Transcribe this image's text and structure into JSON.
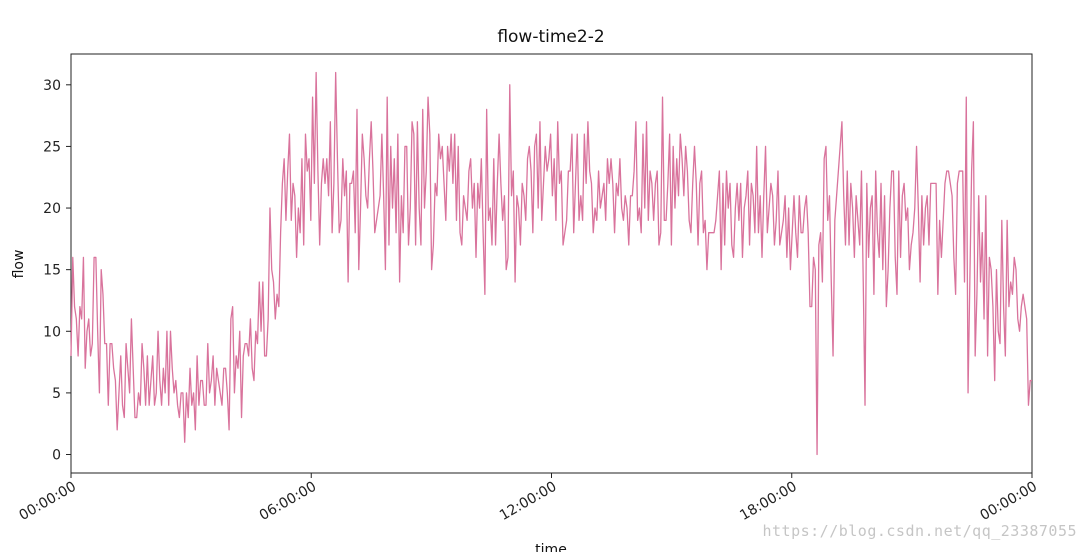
{
  "chart_data": {
    "type": "line",
    "title": "flow-time2-2",
    "xlabel": "time",
    "ylabel": "flow",
    "xlim": [
      "00:00:00",
      "24:00:00"
    ],
    "ylim": [
      -1.5,
      32.5
    ],
    "x_ticks": [
      "00:00:00",
      "06:00:00",
      "12:00:00",
      "18:00:00",
      "00:00:00"
    ],
    "y_ticks": [
      0,
      5,
      10,
      15,
      20,
      25,
      30
    ],
    "grid": false,
    "line_color": "#d9739c",
    "series": [
      {
        "x_start": "00:00:00",
        "x_end": "24:00:00",
        "values": [
          8,
          16,
          12,
          11,
          8,
          12,
          11,
          16,
          7,
          10,
          11,
          8,
          9,
          16,
          16,
          10,
          5,
          15,
          13,
          9,
          9,
          4,
          9,
          9,
          7,
          6,
          2,
          5,
          8,
          4,
          3,
          9,
          7,
          5,
          11,
          7,
          3,
          3,
          5,
          4,
          9,
          7,
          4,
          8,
          4,
          6,
          8,
          4,
          5,
          10,
          6,
          4,
          7,
          5,
          10,
          4,
          10,
          7,
          5,
          6,
          4,
          3,
          5,
          5,
          1,
          5,
          3,
          7,
          4,
          5,
          2,
          8,
          4,
          6,
          6,
          4,
          4,
          9,
          5,
          6,
          8,
          4,
          7,
          6,
          5,
          4,
          7,
          7,
          5,
          2,
          11,
          12,
          5,
          8,
          7,
          10,
          3,
          8,
          9,
          9,
          8,
          11,
          7,
          6,
          10,
          9,
          14,
          10,
          14,
          8,
          8,
          11,
          20,
          15,
          14,
          11,
          13,
          12,
          18,
          22,
          24,
          19,
          23,
          26,
          19,
          22,
          21,
          16,
          20,
          18,
          24,
          17,
          26,
          23,
          24,
          19,
          29,
          22,
          31,
          23,
          17,
          22,
          24,
          22,
          24,
          21,
          27,
          18,
          22,
          31,
          24,
          18,
          19,
          24,
          21,
          23,
          14,
          22,
          22,
          23,
          18,
          28,
          15,
          20,
          26,
          24,
          21,
          20,
          24,
          27,
          23,
          18,
          19,
          20,
          21,
          26,
          21,
          15,
          29,
          17,
          25,
          20,
          24,
          18,
          26,
          14,
          21,
          18,
          25,
          25,
          17,
          20,
          27,
          26,
          17,
          27,
          20,
          17,
          28,
          20,
          23,
          29,
          26,
          15,
          17,
          22,
          21,
          26,
          24,
          25,
          22,
          19,
          25,
          23,
          26,
          22,
          26,
          19,
          25,
          18,
          17,
          21,
          20,
          19,
          23,
          24,
          20,
          22,
          16,
          22,
          20,
          24,
          18,
          13,
          28,
          19,
          20,
          17,
          24,
          17,
          22,
          26,
          22,
          19,
          21,
          15,
          16,
          30,
          21,
          23,
          14,
          21,
          20,
          17,
          22,
          21,
          19,
          24,
          25,
          23,
          18,
          25,
          26,
          20,
          27,
          19,
          22,
          25,
          23,
          24,
          26,
          21,
          24,
          19,
          27,
          22,
          23,
          17,
          18,
          19,
          23,
          23,
          26,
          18,
          22,
          26,
          19,
          21,
          19,
          26,
          22,
          27,
          23,
          22,
          18,
          20,
          19,
          23,
          20,
          21,
          22,
          19,
          24,
          22,
          24,
          22,
          18,
          22,
          21,
          24,
          20,
          19,
          21,
          20,
          17,
          21,
          21,
          23,
          27,
          19,
          20,
          18,
          26,
          20,
          27,
          19,
          23,
          22,
          19,
          22,
          23,
          17,
          18,
          29,
          19,
          19,
          22,
          26,
          17,
          25,
          20,
          24,
          21,
          26,
          24,
          21,
          25,
          23,
          19,
          18,
          22,
          25,
          22,
          17,
          22,
          23,
          18,
          19,
          15,
          18,
          18,
          18,
          18,
          19,
          21,
          23,
          15,
          22,
          17,
          23,
          20,
          22,
          17,
          16,
          20,
          22,
          19,
          22,
          16,
          20,
          21,
          23,
          17,
          22,
          21,
          18,
          25,
          18,
          21,
          16,
          21,
          25,
          18,
          20,
          22,
          21,
          17,
          19,
          23,
          17,
          18,
          19,
          21,
          16,
          20,
          15,
          18,
          21,
          18,
          16,
          21,
          18,
          18,
          20,
          21,
          18,
          12,
          12,
          16,
          15,
          0,
          17,
          18,
          14,
          24,
          25,
          19,
          21,
          14,
          8,
          19,
          21,
          23,
          25,
          27,
          21,
          17,
          23,
          17,
          22,
          20,
          16,
          21,
          19,
          17,
          23,
          14,
          4,
          22,
          16,
          20,
          21,
          13,
          23,
          18,
          16,
          22,
          15,
          21,
          12,
          15,
          20,
          23,
          23,
          16,
          13,
          23,
          16,
          21,
          22,
          19,
          20,
          15,
          17,
          18,
          20,
          25,
          20,
          14,
          21,
          17,
          20,
          21,
          17,
          22,
          22,
          22,
          22,
          13,
          19,
          16,
          19,
          22,
          23,
          23,
          22,
          21,
          16,
          13,
          22,
          23,
          23,
          23,
          14,
          29,
          5,
          14,
          23,
          27,
          8,
          13,
          21,
          14,
          18,
          11,
          21,
          8,
          16,
          15,
          12,
          6,
          15,
          10,
          9,
          19,
          12,
          8,
          19,
          12,
          14,
          13,
          16,
          15,
          11,
          10,
          12,
          13,
          12,
          11,
          4,
          6,
          6
        ]
      }
    ]
  },
  "watermark": "https://blog.csdn.net/qq_23387055"
}
